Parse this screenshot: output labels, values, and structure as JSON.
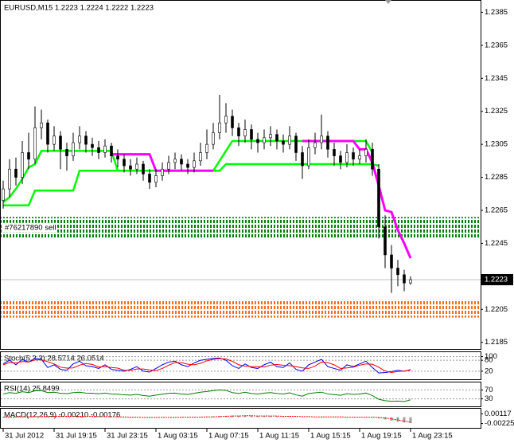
{
  "chart_data": [
    {
      "type": "candlestick",
      "title": "EURUSD,M15  1.2223 1.2224 1.2222 1.2223",
      "categories": [
        "31 Jul 2012",
        null,
        null,
        null,
        null,
        null,
        null,
        null,
        "31 Jul 19:15",
        null,
        null,
        null,
        null,
        null,
        null,
        null,
        "31 Jul 23:15",
        null,
        null,
        null,
        null,
        null,
        null,
        null,
        "1 Aug 03:15",
        null,
        null,
        null,
        null,
        null,
        null,
        null,
        "1 Aug 07:15",
        null,
        null,
        null,
        null,
        null,
        null,
        null,
        "1 Aug 11:15",
        null,
        null,
        null,
        null,
        null,
        null,
        null,
        "1 Aug 15:15",
        null,
        null,
        null,
        null,
        null,
        null,
        null,
        "1 Aug 19:15",
        null,
        null,
        null,
        null,
        null,
        null,
        null,
        "1 Aug 23:15"
      ],
      "open": [
        1.2271,
        1.2278,
        1.229,
        1.2285,
        1.23,
        1.2296,
        1.2315,
        1.2318,
        1.2305,
        1.231,
        1.2302,
        1.2298,
        1.2306,
        1.231,
        1.2305,
        1.2303,
        1.23,
        1.2304,
        1.2298,
        1.2296,
        1.2292,
        1.229,
        1.2293,
        1.2287,
        1.2282,
        1.2286,
        1.229,
        1.2294,
        1.2296,
        1.2293,
        1.2291,
        1.2295,
        1.23,
        1.2305,
        1.2312,
        1.2318,
        1.2322,
        1.2315,
        1.231,
        1.2314,
        1.2308,
        1.2306,
        1.2309,
        1.2311,
        1.2307,
        1.2305,
        1.231,
        1.23,
        1.2292,
        1.2303,
        1.2306,
        1.231,
        1.2302,
        1.2298,
        1.2294,
        1.23,
        1.2296,
        1.2298,
        1.2302,
        1.229,
        1.2255,
        1.2238,
        1.223,
        1.2226,
        1.2221
      ],
      "high": [
        1.2283,
        1.2296,
        1.2297,
        1.2307,
        1.2312,
        1.2328,
        1.2326,
        1.232,
        1.2316,
        1.2313,
        1.2306,
        1.2312,
        1.2316,
        1.2313,
        1.2309,
        1.2307,
        1.2308,
        1.2306,
        1.2302,
        1.2299,
        1.2296,
        1.2297,
        1.2295,
        1.229,
        1.229,
        1.2294,
        1.2298,
        1.23,
        1.2299,
        1.2296,
        1.23,
        1.2306,
        1.2314,
        1.2318,
        1.2335,
        1.233,
        1.2326,
        1.2318,
        1.232,
        1.2317,
        1.2312,
        1.2314,
        1.2316,
        1.2314,
        1.2311,
        1.2316,
        1.2312,
        1.2304,
        1.2308,
        1.2312,
        1.2323,
        1.2313,
        1.2306,
        1.2301,
        1.2305,
        1.2303,
        1.2302,
        1.2308,
        1.2306,
        1.2293,
        1.2262,
        1.2244,
        1.2235,
        1.2229,
        1.2225
      ],
      "low": [
        1.2266,
        1.2273,
        1.228,
        1.2281,
        1.229,
        1.2293,
        1.2308,
        1.23,
        1.2301,
        1.229,
        1.2289,
        1.2295,
        1.2302,
        1.23,
        1.2298,
        1.2296,
        1.2297,
        1.2294,
        1.2291,
        1.2288,
        1.2286,
        1.2287,
        1.2283,
        1.2278,
        1.2279,
        1.2283,
        1.2287,
        1.229,
        1.2289,
        1.2287,
        1.2288,
        1.2292,
        1.2296,
        1.2302,
        1.2308,
        1.2312,
        1.231,
        1.2304,
        1.2306,
        1.2302,
        1.23,
        1.2302,
        1.2304,
        1.2302,
        1.23,
        1.2302,
        1.2295,
        1.2284,
        1.229,
        1.2299,
        1.2302,
        1.2297,
        1.2292,
        1.229,
        1.2291,
        1.2292,
        1.2293,
        1.2294,
        1.2286,
        1.2248,
        1.223,
        1.2215,
        1.2219,
        1.2216,
        1.222
      ],
      "close": [
        1.2278,
        1.229,
        1.2285,
        1.23,
        1.2296,
        1.2315,
        1.2318,
        1.2305,
        1.231,
        1.2302,
        1.2298,
        1.2306,
        1.231,
        1.2305,
        1.2303,
        1.23,
        1.2304,
        1.2298,
        1.2296,
        1.2292,
        1.229,
        1.2293,
        1.2287,
        1.2282,
        1.2286,
        1.229,
        1.2294,
        1.2296,
        1.2293,
        1.2291,
        1.2295,
        1.23,
        1.2305,
        1.2312,
        1.2318,
        1.2322,
        1.2315,
        1.231,
        1.2314,
        1.2308,
        1.2306,
        1.2309,
        1.2311,
        1.2307,
        1.2305,
        1.231,
        1.23,
        1.2292,
        1.2303,
        1.2306,
        1.231,
        1.2302,
        1.2298,
        1.2294,
        1.23,
        1.2296,
        1.2298,
        1.2302,
        1.229,
        1.2255,
        1.2238,
        1.223,
        1.2226,
        1.2221,
        1.2223
      ],
      "series": [
        {
          "color": "#00ff00",
          "values": [
            1.227,
            1.2273,
            1.2278,
            1.2284,
            1.2291,
            1.2293,
            1.2301,
            1.2301,
            1.2301,
            1.2301,
            1.2301,
            1.2301,
            1.2301,
            1.2301,
            1.2301,
            1.2301,
            1.2301,
            1.2301,
            1.2289,
            1.2289,
            1.2289,
            1.2289,
            1.2289,
            1.2289,
            1.2289,
            1.2289,
            1.2289,
            1.2289,
            1.2289,
            1.2289,
            1.2289,
            1.2289,
            1.2289,
            1.2289,
            1.2295,
            1.2301,
            1.2307,
            1.2307,
            1.2307,
            1.2307,
            1.2307,
            1.2307,
            1.2307,
            1.2307,
            1.2307,
            1.2307,
            1.2307,
            1.2307,
            1.2307,
            1.2307,
            1.2307,
            1.2307,
            1.2307,
            1.2307,
            1.2307,
            1.2307,
            1.2307,
            1.2307,
            1.23,
            null,
            null,
            null,
            null,
            null,
            null
          ]
        },
        {
          "color": "#00ff00",
          "values": [
            1.2268,
            1.2268,
            1.2268,
            1.2268,
            1.2268,
            1.2277,
            1.2277,
            1.2277,
            1.2277,
            1.2277,
            1.2277,
            1.2277,
            1.2289,
            1.2289,
            1.2289,
            1.2289,
            1.2289,
            1.2289,
            1.2289,
            1.2289,
            1.2289,
            1.2289,
            1.2289,
            1.2289,
            1.2289,
            1.2289,
            1.2289,
            1.2289,
            1.2289,
            1.2289,
            1.2289,
            1.2289,
            1.2289,
            1.2289,
            1.2289,
            1.2293,
            1.2293,
            1.2293,
            1.2293,
            1.2293,
            1.2293,
            1.2293,
            1.2293,
            1.2293,
            1.2293,
            1.2293,
            1.2293,
            1.2293,
            1.2293,
            1.2293,
            1.2293,
            1.2293,
            1.2293,
            1.2293,
            1.2293,
            1.2293,
            1.2293,
            1.2293,
            1.2293,
            1.2292,
            null,
            null,
            null,
            null,
            null
          ]
        },
        {
          "color": "#ff00ff",
          "values": [
            null,
            null,
            null,
            null,
            null,
            null,
            null,
            null,
            null,
            null,
            null,
            null,
            null,
            null,
            null,
            null,
            null,
            1.2299,
            1.2299,
            1.2299,
            1.2299,
            1.2299,
            1.2299,
            1.2299,
            1.2289,
            1.2289,
            1.2289,
            1.2289,
            1.2289,
            1.2289,
            1.2289,
            1.2289,
            1.2289,
            1.2289,
            null,
            null,
            null,
            null,
            null,
            null,
            null,
            null,
            null,
            null,
            null,
            null,
            null,
            1.2307,
            1.2307,
            1.2307,
            1.2307,
            1.2307,
            1.2307,
            1.2307,
            1.2307,
            1.2307,
            1.2302,
            1.2302,
            1.2294,
            1.228,
            1.2265,
            1.2264,
            1.2253,
            1.2245,
            1.2236
          ]
        }
      ],
      "zones": [
        {
          "from": 1.2248,
          "to": 1.2261,
          "color": "#008000",
          "label": "#76217890 sell"
        },
        {
          "from": 1.22,
          "to": 1.2211,
          "color": "#ff6a1a"
        }
      ],
      "last_price": 1.2223,
      "ylim": [
        1.2181,
        1.2391
      ],
      "yticks": [
        1.2385,
        1.2365,
        1.2345,
        1.2325,
        1.2305,
        1.2285,
        1.2265,
        1.2245,
        1.2205,
        1.2185
      ]
    },
    {
      "type": "line",
      "title": "Stoch(5,3,3) 28.5714 26.0514",
      "series": [
        {
          "color": "#0000ff",
          "values": [
            60,
            80,
            55,
            85,
            70,
            90,
            85,
            40,
            55,
            30,
            25,
            60,
            75,
            50,
            45,
            35,
            55,
            30,
            25,
            20,
            30,
            45,
            20,
            15,
            35,
            55,
            70,
            75,
            55,
            45,
            65,
            80,
            85,
            90,
            92,
            80,
            50,
            35,
            60,
            40,
            35,
            55,
            70,
            45,
            40,
            65,
            30,
            20,
            55,
            70,
            85,
            45,
            35,
            25,
            55,
            45,
            60,
            75,
            40,
            10,
            12,
            18,
            25,
            20,
            28.5714
          ]
        },
        {
          "color": "#ff0000",
          "values": [
            55,
            68,
            65,
            73,
            70,
            82,
            83,
            72,
            60,
            42,
            37,
            38,
            53,
            62,
            57,
            43,
            45,
            40,
            37,
            25,
            25,
            32,
            32,
            27,
            23,
            35,
            53,
            67,
            67,
            58,
            55,
            63,
            77,
            85,
            89,
            87,
            74,
            55,
            48,
            45,
            45,
            43,
            53,
            57,
            52,
            50,
            45,
            38,
            35,
            48,
            70,
            67,
            55,
            35,
            38,
            42,
            53,
            60,
            58,
            42,
            21,
            13,
            18,
            21,
            26.0514
          ]
        }
      ],
      "ylim": [
        -20,
        120
      ],
      "yticks": [
        100,
        80,
        20
      ],
      "grid": true
    },
    {
      "type": "line",
      "title": "RSI(14) 25.8499",
      "series": [
        {
          "color": "#008000",
          "values": [
            52,
            58,
            55,
            62,
            58,
            66,
            67,
            58,
            60,
            55,
            53,
            58,
            60,
            56,
            55,
            53,
            56,
            52,
            51,
            48,
            47,
            50,
            45,
            42,
            47,
            51,
            55,
            56,
            52,
            50,
            55,
            60,
            63,
            67,
            70,
            68,
            58,
            54,
            60,
            54,
            52,
            56,
            58,
            54,
            52,
            57,
            48,
            42,
            54,
            57,
            60,
            52,
            49,
            46,
            53,
            50,
            52,
            56,
            45,
            28,
            22,
            19,
            20,
            18,
            25.8499
          ]
        }
      ],
      "ylim": [
        0,
        100
      ],
      "yticks": [
        70,
        30
      ],
      "grid": true
    },
    {
      "type": "combo",
      "title": "MACD(12,26,9) -0.00210 -0.00176",
      "series": [
        {
          "type": "bar",
          "color": "#a0a0a0",
          "values": [
            0.0,
            0.0001,
            0.0001,
            0.0002,
            0.0002,
            0.0003,
            0.0004,
            0.0004,
            0.0004,
            0.0003,
            0.0003,
            0.0003,
            0.0003,
            0.0003,
            0.0002,
            0.0002,
            0.0002,
            0.0001,
            0.0001,
            0.0,
            -0.0001,
            -0.0001,
            -0.0001,
            -0.0002,
            -0.0002,
            -0.0001,
            -0.0001,
            0.0,
            0.0,
            0.0,
            0.0,
            0.0001,
            0.0002,
            0.0003,
            0.0004,
            0.0005,
            0.0005,
            0.0005,
            0.0005,
            0.0004,
            0.0004,
            0.0004,
            0.0004,
            0.0003,
            0.0003,
            0.0003,
            0.0002,
            0.0001,
            0.0001,
            0.0001,
            0.0002,
            0.0001,
            0.0001,
            0.0,
            0.0,
            0.0,
            0.0,
            0.0,
            -0.0001,
            -0.0004,
            -0.0008,
            -0.0012,
            -0.0016,
            -0.0019,
            -0.0021
          ]
        },
        {
          "type": "line",
          "color": "#ff0000",
          "values": [
            0.0,
            0.0,
            0.0001,
            0.0001,
            0.0001,
            0.0002,
            0.0002,
            0.0003,
            0.0003,
            0.0003,
            0.0003,
            0.0003,
            0.0003,
            0.0003,
            0.0003,
            0.0002,
            0.0002,
            0.0002,
            0.0001,
            0.0001,
            0.0,
            0.0,
            -0.0001,
            -0.0001,
            -0.0001,
            -0.0001,
            -0.0001,
            -0.0001,
            0.0,
            0.0,
            0.0,
            0.0,
            0.0001,
            0.0001,
            0.0002,
            0.0003,
            0.0004,
            0.0004,
            0.0005,
            0.0005,
            0.0004,
            0.0004,
            0.0004,
            0.0004,
            0.0003,
            0.0003,
            0.0003,
            0.0002,
            0.0002,
            0.0001,
            0.0001,
            0.0001,
            0.0001,
            0.0001,
            0.0,
            0.0,
            0.0,
            0.0,
            0.0,
            -0.0001,
            -0.0003,
            -0.0006,
            -0.001,
            -0.0014,
            -0.00176
          ]
        }
      ],
      "ylim": [
        -0.0035,
        0.0027
      ],
      "yticks": [
        0.00117,
        -0.00225
      ]
    }
  ]
}
